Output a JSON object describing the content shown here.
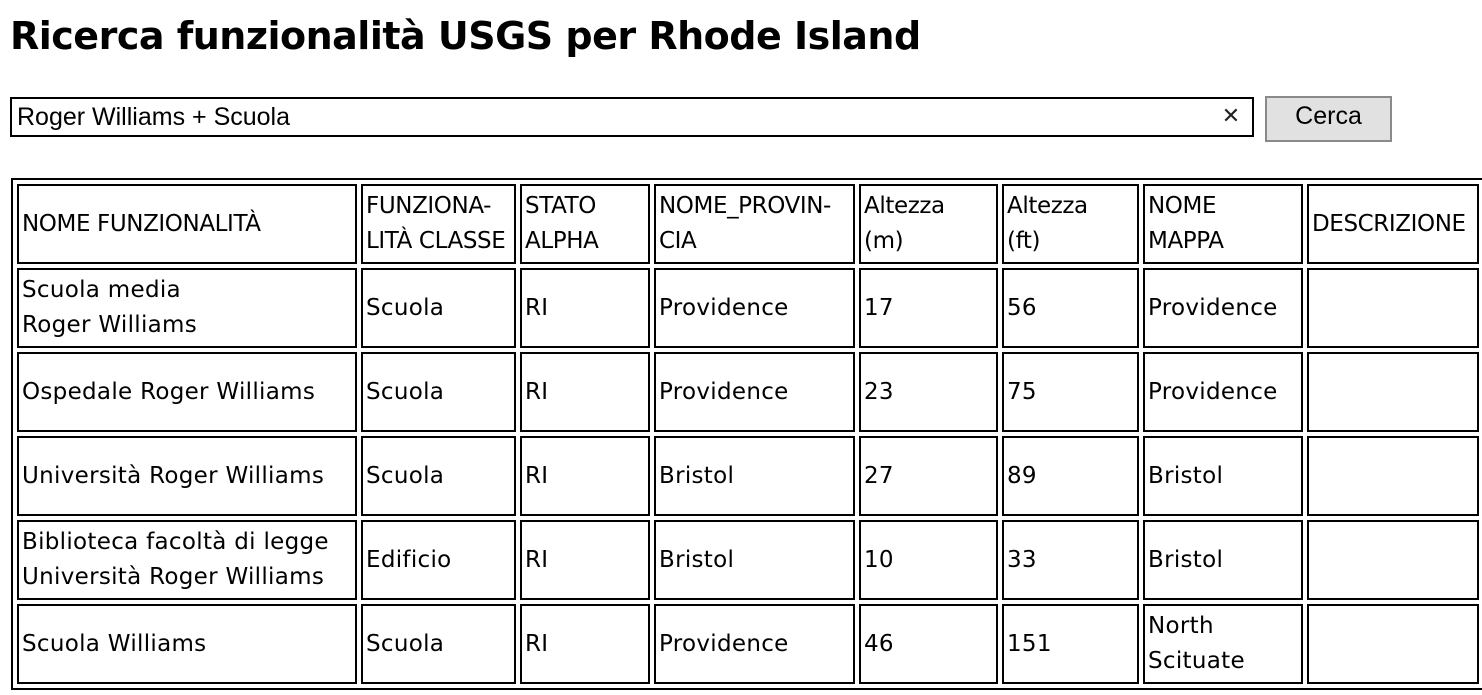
{
  "page": {
    "title": "Ricerca funzionalità USGS per Rhode Island"
  },
  "search": {
    "value": "Roger Williams + Scuola",
    "clear_icon": "✕",
    "button_label": "Cerca"
  },
  "table": {
    "headers": [
      {
        "line1": "NOME FUNZIONALITÀ",
        "line2": ""
      },
      {
        "line1": "FUNZIONA-",
        "line2": "LITÀ CLASSE"
      },
      {
        "line1": "STATO",
        "line2": "ALPHA"
      },
      {
        "line1": "NOME_PROVIN-",
        "line2": "CIA"
      },
      {
        "line1": "Altezza",
        "line2": "(m)"
      },
      {
        "line1": "Altezza",
        "line2": "(ft)"
      },
      {
        "line1": "NOME",
        "line2": "MAPPA"
      },
      {
        "line1": "DESCRIZIONE",
        "line2": ""
      }
    ],
    "rows": [
      {
        "name_line1": "Scuola media",
        "name_line2": "Roger Williams",
        "class": "Scuola",
        "state": "RI",
        "county": "Providence",
        "elev_m": "17",
        "elev_ft": "56",
        "map_line1": "Providence",
        "map_line2": "",
        "description": ""
      },
      {
        "name_line1": "Ospedale Roger Williams",
        "name_line2": "",
        "class": "Scuola",
        "state": "RI",
        "county": "Providence",
        "elev_m": "23",
        "elev_ft": "75",
        "map_line1": "Providence",
        "map_line2": "",
        "description": ""
      },
      {
        "name_line1": "Università Roger Williams",
        "name_line2": "",
        "class": "Scuola",
        "state": "RI",
        "county": "Bristol",
        "elev_m": "27",
        "elev_ft": "89",
        "map_line1": "Bristol",
        "map_line2": "",
        "description": ""
      },
      {
        "name_line1": "Biblioteca facoltà di legge",
        "name_line2": "Università Roger Williams",
        "class": "Edificio",
        "state": "RI",
        "county": "Bristol",
        "elev_m": "10",
        "elev_ft": "33",
        "map_line1": "Bristol",
        "map_line2": "",
        "description": ""
      },
      {
        "name_line1": "Scuola Williams",
        "name_line2": "",
        "class": "Scuola",
        "state": "RI",
        "county": "Providence",
        "elev_m": "46",
        "elev_ft": "151",
        "map_line1": "North",
        "map_line2": "Scituate",
        "description": ""
      }
    ]
  }
}
